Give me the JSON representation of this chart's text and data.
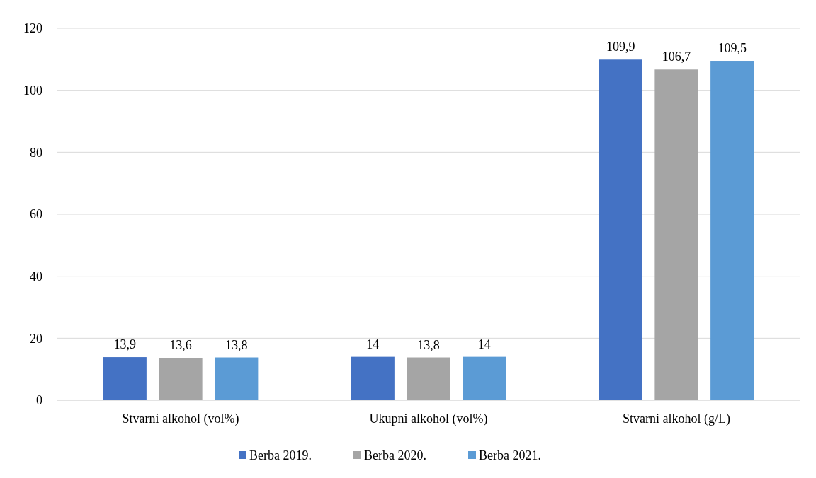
{
  "chart_data": {
    "type": "bar",
    "categories": [
      "Stvarni alkohol (vol%)",
      "Ukupni alkohol (vol%)",
      "Stvarni alkohol (g/L)"
    ],
    "series": [
      {
        "name": "Berba 2019.",
        "color": "#4472c4",
        "values": [
          13.9,
          14,
          109.9
        ],
        "value_labels": [
          "13,9",
          "14",
          "109,9"
        ]
      },
      {
        "name": "Berba 2020.",
        "color": "#a5a5a5",
        "values": [
          13.6,
          13.8,
          106.7
        ],
        "value_labels": [
          "13,6",
          "13,8",
          "106,7"
        ]
      },
      {
        "name": "Berba 2021.",
        "color": "#5b9bd5",
        "values": [
          13.8,
          14,
          109.5
        ],
        "value_labels": [
          "13,8",
          "14",
          "109,5"
        ]
      }
    ],
    "ylim": [
      0,
      120
    ],
    "yticks": [
      0,
      20,
      40,
      60,
      80,
      100,
      120
    ],
    "grid": "y",
    "legend": "bottom"
  }
}
